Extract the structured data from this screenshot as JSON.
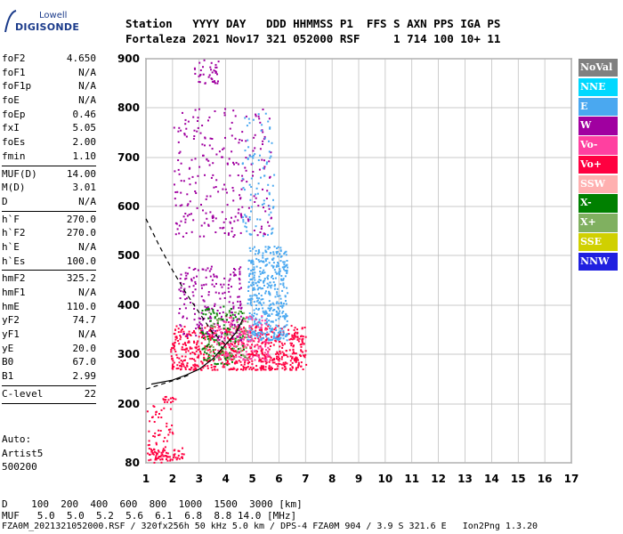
{
  "logo": {
    "line1": "Lowell",
    "line2": "DIGISONDE"
  },
  "header": {
    "labels": "Station   YYYY DAY   DDD HHMMSS P1  FFS S AXN PPS IGA PS",
    "values": "Fortaleza 2021 Nov17 321 052000 RSF     1 714 100 10+ 11"
  },
  "params": {
    "group1": [
      {
        "label": "foF2",
        "value": "4.650"
      },
      {
        "label": "foF1",
        "value": "N/A"
      },
      {
        "label": "foF1p",
        "value": "N/A"
      },
      {
        "label": "foE",
        "value": "N/A"
      },
      {
        "label": "foEp",
        "value": "0.46"
      },
      {
        "label": "fxI",
        "value": "5.05"
      },
      {
        "label": "foEs",
        "value": "2.00"
      },
      {
        "label": "fmin",
        "value": "1.10"
      }
    ],
    "group2": [
      {
        "label": "MUF(D)",
        "value": "14.00"
      },
      {
        "label": "M(D)",
        "value": "3.01"
      },
      {
        "label": "D",
        "value": "N/A"
      }
    ],
    "group3": [
      {
        "label": "h`F",
        "value": "270.0"
      },
      {
        "label": "h`F2",
        "value": "270.0"
      },
      {
        "label": "h`E",
        "value": "N/A"
      },
      {
        "label": "h`Es",
        "value": "100.0"
      }
    ],
    "group4": [
      {
        "label": "hmF2",
        "value": "325.2"
      },
      {
        "label": "hmF1",
        "value": "N/A"
      },
      {
        "label": "hmE",
        "value": "110.0"
      },
      {
        "label": "yF2",
        "value": "74.7"
      },
      {
        "label": "yF1",
        "value": "N/A"
      },
      {
        "label": "yE",
        "value": "20.0"
      },
      {
        "label": "B0",
        "value": "67.0"
      },
      {
        "label": "B1",
        "value": "2.99"
      }
    ],
    "group5": [
      {
        "label": "C-level",
        "value": "22"
      }
    ]
  },
  "auto": {
    "line1": "Auto:",
    "line2": "Artist5",
    "line3": "500200"
  },
  "legend": [
    {
      "label": "NoVal",
      "color": "#808080"
    },
    {
      "label": "NNE",
      "color": "#00d8ff"
    },
    {
      "label": "E",
      "color": "#4aa8f0"
    },
    {
      "label": "W",
      "color": "#a000a0"
    },
    {
      "label": "Vo-",
      "color": "#ff40a0"
    },
    {
      "label": "Vo+",
      "color": "#ff0040"
    },
    {
      "label": "SSW",
      "color": "#ffb0b0"
    },
    {
      "label": "X-",
      "color": "#008000"
    },
    {
      "label": "X+",
      "color": "#80b060"
    },
    {
      "label": "SSE",
      "color": "#d0d000"
    },
    {
      "label": "NNW",
      "color": "#2020e0"
    }
  ],
  "footer": {
    "line1": "D    100  200  400  600  800  1000  1500  3000 [km]",
    "line2": "MUF   5.0  5.0  5.2  5.6  6.1  6.8  8.8 14.0 [MHz]",
    "line3": "FZA0M_2021321052000.RSF / 320fx256h 50 kHz 5.0 km / DPS-4 FZA0M 904 / 3.9 S 321.6 E   Ion2Png 1.3.20"
  },
  "chart_data": {
    "type": "scatter",
    "xlim": [
      1,
      17
    ],
    "ylim": [
      80,
      900
    ],
    "x_ticks": [
      1,
      2,
      3,
      4,
      5,
      6,
      7,
      8,
      9,
      10,
      11,
      12,
      13,
      14,
      15,
      16,
      17
    ],
    "y_ticks": [
      80,
      200,
      300,
      400,
      500,
      600,
      700,
      800,
      900
    ],
    "grid": true,
    "legend_position": "right",
    "clusters": [
      {
        "series": "Vo+",
        "x": [
          1.9,
          7.0
        ],
        "y": [
          270,
          360
        ],
        "n": 700
      },
      {
        "series": "E",
        "x": [
          4.8,
          6.3
        ],
        "y": [
          330,
          520
        ],
        "n": 450
      },
      {
        "series": "W",
        "x": [
          2.2,
          4.6
        ],
        "y": [
          330,
          480
        ],
        "n": 220
      },
      {
        "series": "Vo-",
        "x": [
          3.6,
          5.6
        ],
        "y": [
          290,
          380
        ],
        "n": 180
      },
      {
        "series": "X-",
        "x": [
          3.0,
          4.7
        ],
        "y": [
          280,
          400
        ],
        "n": 110
      },
      {
        "series": "X+",
        "x": [
          3.2,
          4.8
        ],
        "y": [
          290,
          390
        ],
        "n": 70
      },
      {
        "series": "W",
        "x": [
          2.0,
          5.7
        ],
        "y": [
          540,
          800
        ],
        "n": 260
      },
      {
        "series": "E",
        "x": [
          4.6,
          5.8
        ],
        "y": [
          540,
          790
        ],
        "n": 90
      },
      {
        "series": "W",
        "x": [
          2.8,
          3.7
        ],
        "y": [
          850,
          900
        ],
        "n": 40
      },
      {
        "series": "Vo+",
        "x": [
          1.1,
          2.4
        ],
        "y": [
          88,
          112
        ],
        "n": 60
      },
      {
        "series": "Vo+",
        "x": [
          1.6,
          2.1
        ],
        "y": [
          205,
          218
        ],
        "n": 15
      },
      {
        "series": "Vo+",
        "x": [
          1.0,
          2.0
        ],
        "y": [
          80,
          200
        ],
        "n": 60
      }
    ],
    "curves": [
      {
        "style": "solid",
        "x": [
          1.2,
          2.0,
          2.5,
          3.0,
          3.5,
          4.0,
          4.4,
          4.65
        ],
        "y": [
          240,
          248,
          258,
          270,
          290,
          320,
          345,
          372
        ]
      },
      {
        "style": "dashed",
        "x": [
          1.0,
          1.5,
          2.0,
          2.5,
          3.0,
          3.5,
          4.0
        ],
        "y": [
          575,
          520,
          470,
          425,
          385,
          345,
          320
        ]
      },
      {
        "style": "dashed",
        "x": [
          1.0,
          1.6,
          2.2,
          2.6
        ],
        "y": [
          230,
          240,
          250,
          258
        ]
      }
    ]
  }
}
